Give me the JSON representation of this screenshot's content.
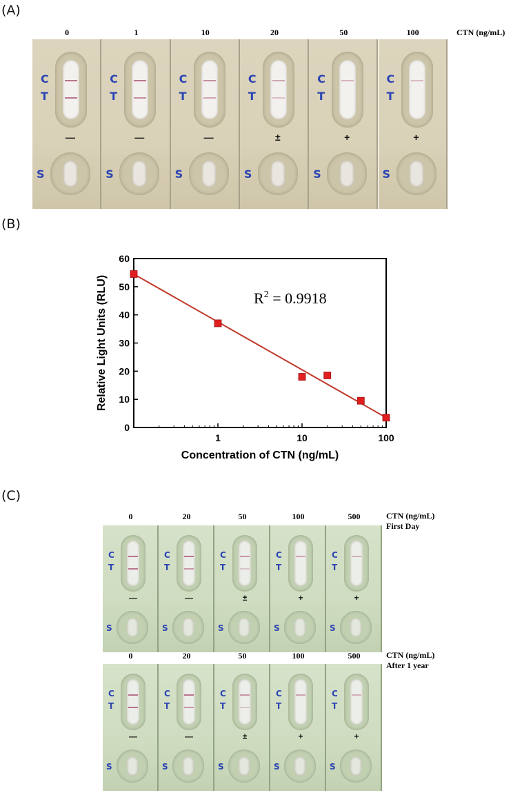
{
  "panels": {
    "a": {
      "label": "(A)",
      "unit": "CTN (ng/mL)",
      "concentrations": [
        "0",
        "1",
        "10",
        "20",
        "50",
        "100"
      ],
      "results": [
        "—",
        "—",
        "—",
        "±",
        "+",
        "+"
      ],
      "letters": {
        "c": "C",
        "t": "T",
        "s": "S"
      },
      "band_c_intensity": [
        1,
        1,
        0.8,
        0.6,
        0.5,
        0.45
      ],
      "band_t_intensity": [
        1,
        0.8,
        0.6,
        0.4,
        0,
        0
      ]
    },
    "b": {
      "label": "(B)"
    },
    "c": {
      "label": "(C)",
      "letters": {
        "c": "C",
        "t": "T",
        "s": "S"
      },
      "rows": [
        {
          "unit_line1": "CTN (ng/mL)",
          "unit_line2": "First Day",
          "concentrations": [
            "0",
            "20",
            "50",
            "100",
            "500"
          ],
          "results": [
            "—",
            "—",
            "±",
            "+",
            "+"
          ],
          "band_c_intensity": [
            1,
            1,
            0.7,
            0.6,
            0.5
          ],
          "band_t_intensity": [
            1,
            0.7,
            0.35,
            0,
            0
          ]
        },
        {
          "unit_line1": "CTN (ng/mL)",
          "unit_line2": "After 1 year",
          "concentrations": [
            "0",
            "20",
            "50",
            "100",
            "500"
          ],
          "results": [
            "—",
            "—",
            "±",
            "+",
            "+"
          ],
          "band_c_intensity": [
            1,
            1,
            0.7,
            0.6,
            0.5
          ],
          "band_t_intensity": [
            1,
            0.7,
            0.35,
            0,
            0
          ]
        }
      ]
    }
  },
  "colors": {
    "cassette_a": "#d9d1b8",
    "cassette_c": "#cfdcc0",
    "band": "#b8748c",
    "letter_blue": "#2a44b3",
    "marker": "#e02020",
    "fit_line": "#c0392b"
  },
  "chart_data": {
    "type": "scatter",
    "x_scale": "log",
    "xlabel": "Concentration of CTN (ng/mL)",
    "ylabel": "Relative Light Units (RLU)",
    "xlim": [
      0.1,
      100
    ],
    "ylim": [
      0,
      60
    ],
    "x_tick_labels": [
      "1",
      "10",
      "100"
    ],
    "x_ticks": [
      1,
      10,
      100
    ],
    "y_ticks": [
      0,
      10,
      20,
      30,
      40,
      50,
      60
    ],
    "grid": false,
    "annotation": {
      "text_base": "R",
      "text_sup": "2",
      "text_rest": " = 0.9918"
    },
    "series": [
      {
        "x": [
          0.1,
          1,
          10,
          20,
          50,
          100
        ],
        "y": [
          54.5,
          37,
          18,
          18.5,
          9.5,
          3.5
        ]
      }
    ],
    "fit_line": {
      "x": [
        0.1,
        100
      ],
      "y": [
        54.5,
        3.5
      ]
    }
  }
}
